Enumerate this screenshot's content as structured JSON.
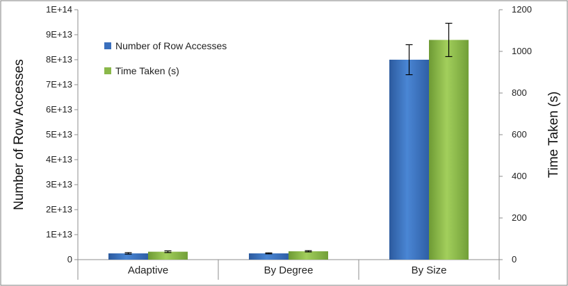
{
  "chart_data": {
    "type": "bar",
    "categories": [
      "Adaptive",
      "By Degree",
      "By Size"
    ],
    "series": [
      {
        "name": "Number of Row Accesses",
        "axis": "left",
        "color": "#3a6fbd",
        "values": [
          2500000000000.0,
          2500000000000.0,
          80000000000000.0
        ],
        "errors": [
          300000000000.0,
          200000000000.0,
          6000000000000.0
        ]
      },
      {
        "name": "Time Taken (s)",
        "axis": "right",
        "color": "#8ab84a",
        "values": [
          38,
          40,
          1055
        ],
        "errors": [
          4,
          3,
          80
        ]
      }
    ],
    "ylabel": "Number of Row Accesses",
    "y2label": "Time Taken (s)",
    "ylim": [
      0,
      100000000000000.0
    ],
    "y2lim": [
      0,
      1200
    ],
    "yticks": [
      0,
      10000000000000.0,
      20000000000000.0,
      30000000000000.0,
      40000000000000.0,
      50000000000000.0,
      60000000000000.0,
      70000000000000.0,
      80000000000000.0,
      90000000000000.0,
      100000000000000.0
    ],
    "ytick_labels": [
      "0",
      "1E+13",
      "2E+13",
      "3E+13",
      "4E+13",
      "5E+13",
      "6E+13",
      "7E+13",
      "8E+13",
      "9E+13",
      "1E+14"
    ],
    "y2ticks": [
      0,
      200,
      400,
      600,
      800,
      1000,
      1200
    ],
    "y2tick_labels": [
      "0",
      "200",
      "400",
      "600",
      "800",
      "1000",
      "1200"
    ],
    "grid": false,
    "legend": "top-left"
  }
}
